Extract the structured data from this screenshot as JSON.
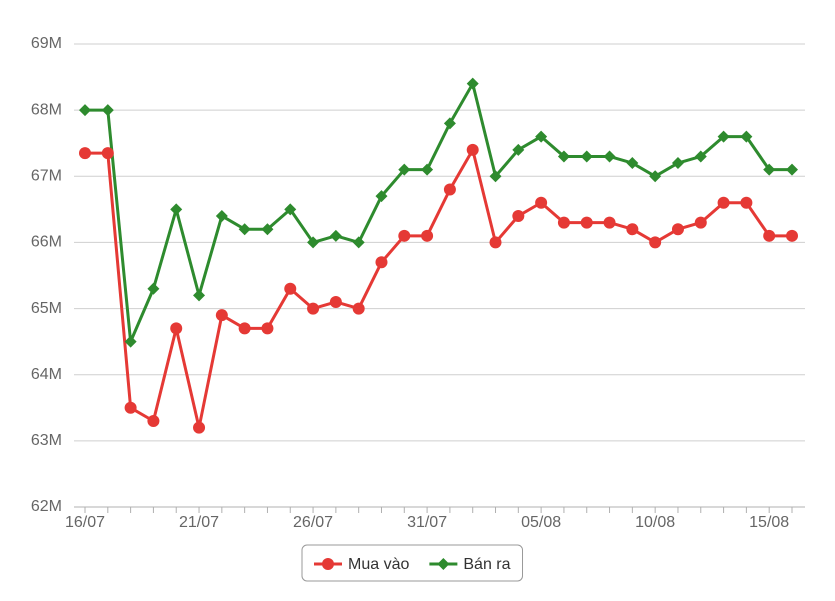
{
  "chart_data": {
    "type": "line",
    "categories": [
      "16/07",
      null,
      null,
      null,
      null,
      "21/07",
      null,
      null,
      null,
      null,
      "26/07",
      null,
      null,
      null,
      null,
      "31/07",
      null,
      null,
      null,
      null,
      "05/08",
      null,
      null,
      null,
      null,
      "10/08",
      null,
      null,
      null,
      null,
      "15/08",
      null
    ],
    "series": [
      {
        "name": "Mua vào",
        "color": "#e53935",
        "marker": "circle",
        "values": [
          67.35,
          67.35,
          63.5,
          63.3,
          64.7,
          63.2,
          64.9,
          64.7,
          64.7,
          65.3,
          65.0,
          65.1,
          65.0,
          65.7,
          66.1,
          66.1,
          66.8,
          67.4,
          66.0,
          66.4,
          66.6,
          66.3,
          66.3,
          66.3,
          66.2,
          66.0,
          66.2,
          66.3,
          66.6,
          66.6,
          66.1,
          66.1
        ]
      },
      {
        "name": "Bán ra",
        "color": "#2e8b2e",
        "marker": "diamond",
        "values": [
          68.0,
          68.0,
          64.5,
          65.3,
          66.5,
          65.2,
          66.4,
          66.2,
          66.2,
          66.5,
          66.0,
          66.1,
          66.0,
          66.7,
          67.1,
          67.1,
          67.8,
          68.4,
          67.0,
          67.4,
          67.6,
          67.3,
          67.3,
          67.3,
          67.2,
          67.0,
          67.2,
          67.3,
          67.6,
          67.6,
          67.1,
          67.1
        ]
      }
    ],
    "ylim": [
      62,
      69
    ],
    "yticks": [
      {
        "value": 62,
        "label": "62M"
      },
      {
        "value": 63,
        "label": "63M"
      },
      {
        "value": 64,
        "label": "64M"
      },
      {
        "value": 65,
        "label": "65M"
      },
      {
        "value": 66,
        "label": "66M"
      },
      {
        "value": 67,
        "label": "67M"
      },
      {
        "value": 68,
        "label": "68M"
      },
      {
        "value": 69,
        "label": "69M"
      }
    ],
    "grid": true,
    "legend": "bottom"
  }
}
